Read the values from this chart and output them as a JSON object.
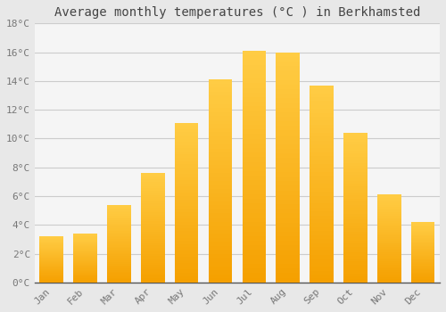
{
  "months": [
    "Jan",
    "Feb",
    "Mar",
    "Apr",
    "May",
    "Jun",
    "Jul",
    "Aug",
    "Sep",
    "Oct",
    "Nov",
    "Dec"
  ],
  "temperatures": [
    3.2,
    3.4,
    5.4,
    7.6,
    11.1,
    14.1,
    16.1,
    16.0,
    13.7,
    10.4,
    6.1,
    4.2
  ],
  "bar_color_light": "#FFCC44",
  "bar_color_dark": "#F5A000",
  "background_color": "#E8E8E8",
  "plot_bg_color": "#F5F5F5",
  "title": "Average monthly temperatures (°C ) in Berkhamsted",
  "ylim": [
    0,
    18
  ],
  "yticks": [
    0,
    2,
    4,
    6,
    8,
    10,
    12,
    14,
    16,
    18
  ],
  "ytick_labels": [
    "0°C",
    "2°C",
    "4°C",
    "6°C",
    "8°C",
    "10°C",
    "12°C",
    "14°C",
    "16°C",
    "18°C"
  ],
  "title_fontsize": 10,
  "tick_fontsize": 8,
  "grid_color": "#CCCCCC",
  "font_family": "monospace",
  "bar_width": 0.7,
  "n_gradient_steps": 50
}
